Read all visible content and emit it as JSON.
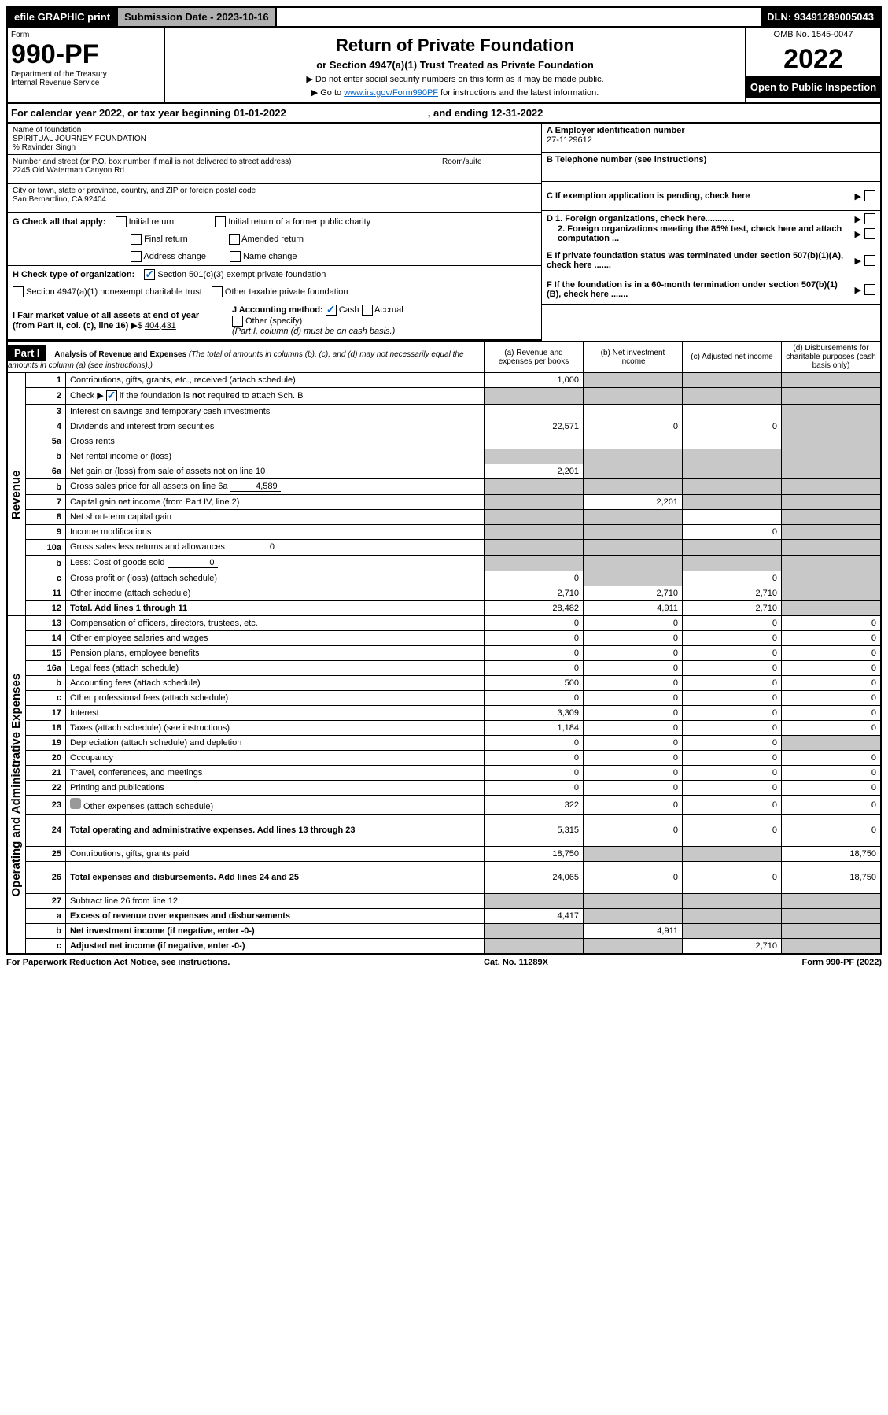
{
  "top": {
    "efile": "efile GRAPHIC print",
    "submission_label": "Submission Date - 2023-10-16",
    "dln": "DLN: 93491289005043"
  },
  "header": {
    "form_label": "Form",
    "form_number": "990-PF",
    "dept1": "Department of the Treasury",
    "dept2": "Internal Revenue Service",
    "title": "Return of Private Foundation",
    "subtitle": "or Section 4947(a)(1) Trust Treated as Private Foundation",
    "note1": "▶ Do not enter social security numbers on this form as it may be made public.",
    "note2_pre": "▶ Go to ",
    "note2_link": "www.irs.gov/Form990PF",
    "note2_post": " for instructions and the latest information.",
    "omb": "OMB No. 1545-0047",
    "year": "2022",
    "open": "Open to Public Inspection"
  },
  "cal": {
    "text1": "For calendar year 2022, or tax year beginning 01-01-2022",
    "text2": ", and ending 12-31-2022"
  },
  "info": {
    "name_lbl": "Name of foundation",
    "name": "SPIRITUAL JOURNEY FOUNDATION",
    "co": "% Ravinder Singh",
    "addr_lbl": "Number and street (or P.O. box number if mail is not delivered to street address)",
    "addr": "2245 Old Waterman Canyon Rd",
    "room_lbl": "Room/suite",
    "city_lbl": "City or town, state or province, country, and ZIP or foreign postal code",
    "city": "San Bernardino, CA  92404",
    "A_lbl": "A Employer identification number",
    "A_val": "27-1129612",
    "B_lbl": "B Telephone number (see instructions)",
    "C_lbl": "C If exemption application is pending, check here",
    "D1_lbl": "D 1. Foreign organizations, check here............",
    "D2_lbl": "2. Foreign organizations meeting the 85% test, check here and attach computation ...",
    "E_lbl": "E  If private foundation status was terminated under section 507(b)(1)(A), check here .......",
    "F_lbl": "F  If the foundation is in a 60-month termination under section 507(b)(1)(B), check here ......."
  },
  "G": {
    "label": "G Check all that apply:",
    "o1": "Initial return",
    "o2": "Final return",
    "o3": "Address change",
    "o4": "Initial return of a former public charity",
    "o5": "Amended return",
    "o6": "Name change"
  },
  "H": {
    "label": "H Check type of organization:",
    "o1": "Section 501(c)(3) exempt private foundation",
    "o2": "Section 4947(a)(1) nonexempt charitable trust",
    "o3": "Other taxable private foundation"
  },
  "I": {
    "label": "I Fair market value of all assets at end of year (from Part II, col. (c), line 16)",
    "arrow": "▶$",
    "value": "404,431"
  },
  "J": {
    "label": "J Accounting method:",
    "o1": "Cash",
    "o2": "Accrual",
    "o3": "Other (specify)",
    "note": "(Part I, column (d) must be on cash basis.)"
  },
  "part1": {
    "title": "Part I",
    "heading": "Analysis of Revenue and Expenses",
    "desc": "(The total of amounts in columns (b), (c), and (d) may not necessarily equal the amounts in column (a) (see instructions).)",
    "col_a": "(a)   Revenue and expenses per books",
    "col_b": "(b)   Net investment income",
    "col_c": "(c)   Adjusted net income",
    "col_d": "(d)   Disbursements for charitable purposes (cash basis only)"
  },
  "sections": {
    "revenue": "Revenue",
    "expenses": "Operating and Administrative Expenses"
  },
  "rows": [
    {
      "n": "1",
      "l": "Contributions, gifts, grants, etc., received (attach schedule)",
      "a": "1,000",
      "b": "",
      "c": "",
      "d": "",
      "sb": true,
      "sc": true,
      "sd": true
    },
    {
      "n": "2",
      "l": "Check ▶ ☑ if the foundation is not required to attach Sch. B",
      "a": "",
      "b": "",
      "c": "",
      "d": "",
      "sa": true,
      "sb": true,
      "sc": true,
      "sd": true,
      "noval": true,
      "haschecked": true
    },
    {
      "n": "3",
      "l": "Interest on savings and temporary cash investments",
      "a": "",
      "b": "",
      "c": "",
      "d": "",
      "sd": true
    },
    {
      "n": "4",
      "l": "Dividends and interest from securities",
      "a": "22,571",
      "b": "0",
      "c": "0",
      "d": "",
      "sd": true
    },
    {
      "n": "5a",
      "l": "Gross rents",
      "a": "",
      "b": "",
      "c": "",
      "d": "",
      "sd": true
    },
    {
      "n": "b",
      "l": "Net rental income or (loss)",
      "a": "",
      "b": "",
      "c": "",
      "d": "",
      "inline": true,
      "sa": true,
      "sb": true,
      "sc": true,
      "sd": true
    },
    {
      "n": "6a",
      "l": "Net gain or (loss) from sale of assets not on line 10",
      "a": "2,201",
      "b": "",
      "c": "",
      "d": "",
      "sb": true,
      "sc": true,
      "sd": true
    },
    {
      "n": "b",
      "l": "Gross sales price for all assets on line 6a",
      "a": "",
      "b": "",
      "c": "",
      "d": "",
      "inline": true,
      "ival": "4,589",
      "sa": true,
      "sb": true,
      "sc": true,
      "sd": true
    },
    {
      "n": "7",
      "l": "Capital gain net income (from Part IV, line 2)",
      "a": "",
      "b": "2,201",
      "c": "",
      "d": "",
      "sa": true,
      "sc": true,
      "sd": true
    },
    {
      "n": "8",
      "l": "Net short-term capital gain",
      "a": "",
      "b": "",
      "c": "",
      "d": "",
      "sa": true,
      "sb": true,
      "sd": true
    },
    {
      "n": "9",
      "l": "Income modifications",
      "a": "",
      "b": "",
      "c": "0",
      "d": "",
      "sa": true,
      "sb": true,
      "sd": true
    },
    {
      "n": "10a",
      "l": "Gross sales less returns and allowances",
      "a": "",
      "b": "",
      "c": "",
      "d": "",
      "inline": true,
      "ival": "0",
      "sa": true,
      "sb": true,
      "sc": true,
      "sd": true
    },
    {
      "n": "b",
      "l": "Less: Cost of goods sold",
      "a": "",
      "b": "",
      "c": "",
      "d": "",
      "inline": true,
      "ival": "0",
      "sa": true,
      "sb": true,
      "sc": true,
      "sd": true
    },
    {
      "n": "c",
      "l": "Gross profit or (loss) (attach schedule)",
      "a": "0",
      "b": "",
      "c": "0",
      "d": "",
      "sb": true,
      "sd": true
    },
    {
      "n": "11",
      "l": "Other income (attach schedule)",
      "a": "2,710",
      "b": "2,710",
      "c": "2,710",
      "d": "",
      "sd": true
    },
    {
      "n": "12",
      "l": "Total. Add lines 1 through 11",
      "a": "28,482",
      "b": "4,911",
      "c": "2,710",
      "d": "",
      "sd": true,
      "bold": true
    },
    {
      "n": "13",
      "l": "Compensation of officers, directors, trustees, etc.",
      "a": "0",
      "b": "0",
      "c": "0",
      "d": "0"
    },
    {
      "n": "14",
      "l": "Other employee salaries and wages",
      "a": "0",
      "b": "0",
      "c": "0",
      "d": "0"
    },
    {
      "n": "15",
      "l": "Pension plans, employee benefits",
      "a": "0",
      "b": "0",
      "c": "0",
      "d": "0"
    },
    {
      "n": "16a",
      "l": "Legal fees (attach schedule)",
      "a": "0",
      "b": "0",
      "c": "0",
      "d": "0"
    },
    {
      "n": "b",
      "l": "Accounting fees (attach schedule)",
      "a": "500",
      "b": "0",
      "c": "0",
      "d": "0"
    },
    {
      "n": "c",
      "l": "Other professional fees (attach schedule)",
      "a": "0",
      "b": "0",
      "c": "0",
      "d": "0"
    },
    {
      "n": "17",
      "l": "Interest",
      "a": "3,309",
      "b": "0",
      "c": "0",
      "d": "0"
    },
    {
      "n": "18",
      "l": "Taxes (attach schedule) (see instructions)",
      "a": "1,184",
      "b": "0",
      "c": "0",
      "d": "0"
    },
    {
      "n": "19",
      "l": "Depreciation (attach schedule) and depletion",
      "a": "0",
      "b": "0",
      "c": "0",
      "d": "",
      "sd": true
    },
    {
      "n": "20",
      "l": "Occupancy",
      "a": "0",
      "b": "0",
      "c": "0",
      "d": "0"
    },
    {
      "n": "21",
      "l": "Travel, conferences, and meetings",
      "a": "0",
      "b": "0",
      "c": "0",
      "d": "0"
    },
    {
      "n": "22",
      "l": "Printing and publications",
      "a": "0",
      "b": "0",
      "c": "0",
      "d": "0"
    },
    {
      "n": "23",
      "l": "Other expenses (attach schedule)",
      "a": "322",
      "b": "0",
      "c": "0",
      "d": "0",
      "attach": true
    },
    {
      "n": "24",
      "l": "Total operating and administrative expenses. Add lines 13 through 23",
      "a": "5,315",
      "b": "0",
      "c": "0",
      "d": "0",
      "bold": true,
      "tall": true
    },
    {
      "n": "25",
      "l": "Contributions, gifts, grants paid",
      "a": "18,750",
      "b": "",
      "c": "",
      "d": "18,750",
      "sb": true,
      "sc": true
    },
    {
      "n": "26",
      "l": "Total expenses and disbursements. Add lines 24 and 25",
      "a": "24,065",
      "b": "0",
      "c": "0",
      "d": "18,750",
      "bold": true,
      "tall": true
    },
    {
      "n": "27",
      "l": "Subtract line 26 from line 12:",
      "a": "",
      "b": "",
      "c": "",
      "d": "",
      "sa": true,
      "sb": true,
      "sc": true,
      "sd": true
    },
    {
      "n": "a",
      "l": "Excess of revenue over expenses and disbursements",
      "a": "4,417",
      "b": "",
      "c": "",
      "d": "",
      "bold": true,
      "sb": true,
      "sc": true,
      "sd": true
    },
    {
      "n": "b",
      "l": "Net investment income (if negative, enter -0-)",
      "a": "",
      "b": "4,911",
      "c": "",
      "d": "",
      "bold": true,
      "sa": true,
      "sc": true,
      "sd": true
    },
    {
      "n": "c",
      "l": "Adjusted net income (if negative, enter -0-)",
      "a": "",
      "b": "",
      "c": "2,710",
      "d": "",
      "bold": true,
      "sa": true,
      "sb": true,
      "sd": true
    }
  ],
  "footer": {
    "left": "For Paperwork Reduction Act Notice, see instructions.",
    "center": "Cat. No. 11289X",
    "right": "Form 990-PF (2022)"
  },
  "colors": {
    "black": "#000000",
    "gray_header": "#b0b0b0",
    "gray_shade": "#c8c8c8",
    "link": "#0066cc",
    "check": "#0066cc"
  }
}
